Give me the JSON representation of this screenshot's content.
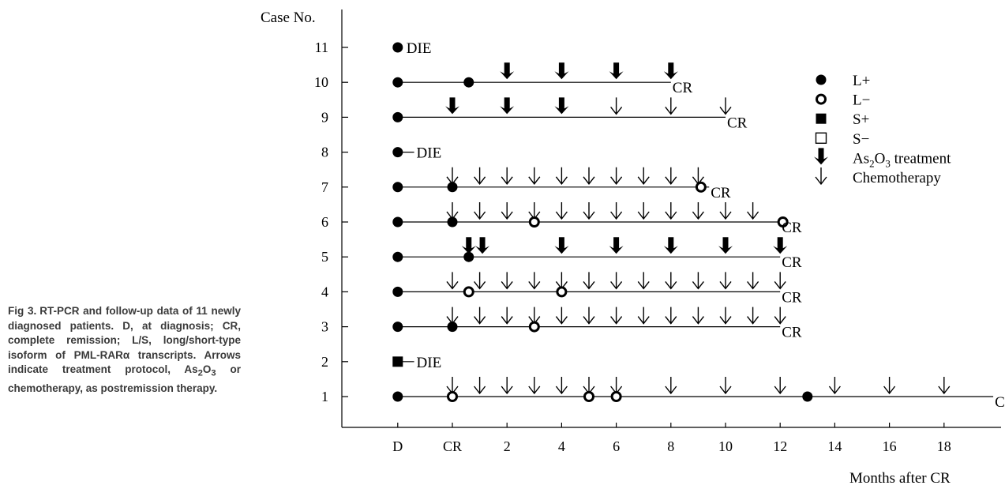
{
  "caption": {
    "figure": "Fig 3.",
    "text_before_sub": "RT-PCR and follow-up data of 11 newly diagnosed patients. D, at diagnosis; CR, complete remission; L/S, long/short-type isoform of PML-RARα transcripts. Arrows indicate treatment protocol, As",
    "sub1": "2",
    "mid": "O",
    "sub2": "3",
    "text_after_sub": " or chemotherapy, as postremission therapy."
  },
  "chart_data": {
    "type": "timeline",
    "ylabel": "Case No.",
    "xlabel": "Months after CR",
    "x_ticks": [
      {
        "label": "D",
        "value": -2
      },
      {
        "label": "CR",
        "value": 0
      },
      {
        "label": "2",
        "value": 2
      },
      {
        "label": "4",
        "value": 4
      },
      {
        "label": "6",
        "value": 6
      },
      {
        "label": "8",
        "value": 8
      },
      {
        "label": "10",
        "value": 10
      },
      {
        "label": "12",
        "value": 12
      },
      {
        "label": "14",
        "value": 14
      },
      {
        "label": "16",
        "value": 16
      },
      {
        "label": "18",
        "value": 18
      }
    ],
    "y_ticks": [
      "1",
      "2",
      "3",
      "4",
      "5",
      "6",
      "7",
      "8",
      "9",
      "10",
      "11"
    ],
    "legend": [
      {
        "type": "L+",
        "label": "L+"
      },
      {
        "type": "L-",
        "label": "L−"
      },
      {
        "type": "S+",
        "label": "S+"
      },
      {
        "type": "S-",
        "label": "S−"
      },
      {
        "type": "as2o3",
        "label_main": "As",
        "label_sub1": "2",
        "label_mid": "O",
        "label_sub2": "3",
        "label_tail": " treatment"
      },
      {
        "type": "chemo",
        "label": "Chemotherapy"
      }
    ],
    "cases": [
      {
        "case": 1,
        "line_end": 19.8,
        "outcome": "CR",
        "markers": [
          {
            "x": -2,
            "type": "L+"
          },
          {
            "x": 0,
            "type": "L-"
          },
          {
            "x": 5,
            "type": "L-"
          },
          {
            "x": 6,
            "type": "L-"
          },
          {
            "x": 13,
            "type": "L+"
          }
        ],
        "arrows": [
          {
            "x": 0,
            "type": "chemo"
          },
          {
            "x": 1,
            "type": "chemo"
          },
          {
            "x": 2,
            "type": "chemo"
          },
          {
            "x": 3,
            "type": "chemo"
          },
          {
            "x": 4,
            "type": "chemo"
          },
          {
            "x": 5,
            "type": "chemo"
          },
          {
            "x": 6,
            "type": "chemo"
          },
          {
            "x": 8,
            "type": "chemo"
          },
          {
            "x": 10,
            "type": "chemo"
          },
          {
            "x": 12,
            "type": "chemo"
          },
          {
            "x": 14,
            "type": "chemo"
          },
          {
            "x": 16,
            "type": "chemo"
          },
          {
            "x": 18,
            "type": "chemo"
          }
        ]
      },
      {
        "case": 2,
        "line_end": -1.4,
        "outcome": "DIE",
        "markers": [
          {
            "x": -2,
            "type": "S+"
          }
        ],
        "arrows": []
      },
      {
        "case": 3,
        "line_end": 12,
        "outcome": "CR",
        "markers": [
          {
            "x": -2,
            "type": "L+"
          },
          {
            "x": 0,
            "type": "L+"
          },
          {
            "x": 3,
            "type": "L-"
          }
        ],
        "arrows": [
          {
            "x": 0,
            "type": "chemo"
          },
          {
            "x": 1,
            "type": "chemo"
          },
          {
            "x": 2,
            "type": "chemo"
          },
          {
            "x": 3,
            "type": "chemo"
          },
          {
            "x": 4,
            "type": "chemo"
          },
          {
            "x": 5,
            "type": "chemo"
          },
          {
            "x": 6,
            "type": "chemo"
          },
          {
            "x": 7,
            "type": "chemo"
          },
          {
            "x": 8,
            "type": "chemo"
          },
          {
            "x": 9,
            "type": "chemo"
          },
          {
            "x": 10,
            "type": "chemo"
          },
          {
            "x": 11,
            "type": "chemo"
          },
          {
            "x": 12,
            "type": "chemo"
          }
        ]
      },
      {
        "case": 4,
        "line_end": 12,
        "outcome": "CR",
        "markers": [
          {
            "x": -2,
            "type": "L+"
          },
          {
            "x": 0.6,
            "type": "L-"
          },
          {
            "x": 4,
            "type": "L-"
          }
        ],
        "arrows": [
          {
            "x": 0,
            "type": "chemo"
          },
          {
            "x": 1,
            "type": "chemo"
          },
          {
            "x": 2,
            "type": "chemo"
          },
          {
            "x": 3,
            "type": "chemo"
          },
          {
            "x": 4,
            "type": "chemo"
          },
          {
            "x": 5,
            "type": "chemo"
          },
          {
            "x": 6,
            "type": "chemo"
          },
          {
            "x": 7,
            "type": "chemo"
          },
          {
            "x": 8,
            "type": "chemo"
          },
          {
            "x": 9,
            "type": "chemo"
          },
          {
            "x": 10,
            "type": "chemo"
          },
          {
            "x": 11,
            "type": "chemo"
          },
          {
            "x": 12,
            "type": "chemo"
          }
        ]
      },
      {
        "case": 5,
        "line_end": 12,
        "outcome": "CR",
        "markers": [
          {
            "x": -2,
            "type": "L+"
          },
          {
            "x": 0.6,
            "type": "L+"
          }
        ],
        "arrows": [
          {
            "x": 0.6,
            "type": "as2o3"
          },
          {
            "x": 1.1,
            "type": "as2o3"
          },
          {
            "x": 4,
            "type": "as2o3"
          },
          {
            "x": 6,
            "type": "as2o3"
          },
          {
            "x": 8,
            "type": "as2o3"
          },
          {
            "x": 10,
            "type": "as2o3"
          },
          {
            "x": 12,
            "type": "as2o3"
          }
        ]
      },
      {
        "case": 6,
        "line_end": 12,
        "outcome": "CR",
        "markers": [
          {
            "x": -2,
            "type": "L+"
          },
          {
            "x": 0,
            "type": "L+"
          },
          {
            "x": 3,
            "type": "L-"
          },
          {
            "x": 12.1,
            "type": "L-"
          }
        ],
        "arrows": [
          {
            "x": 0,
            "type": "chemo"
          },
          {
            "x": 1,
            "type": "chemo"
          },
          {
            "x": 2,
            "type": "chemo"
          },
          {
            "x": 3,
            "type": "chemo"
          },
          {
            "x": 4,
            "type": "chemo"
          },
          {
            "x": 5,
            "type": "chemo"
          },
          {
            "x": 6,
            "type": "chemo"
          },
          {
            "x": 7,
            "type": "chemo"
          },
          {
            "x": 8,
            "type": "chemo"
          },
          {
            "x": 9,
            "type": "chemo"
          },
          {
            "x": 10,
            "type": "chemo"
          },
          {
            "x": 11,
            "type": "chemo"
          }
        ]
      },
      {
        "case": 7,
        "line_end": 9.4,
        "outcome": "CR",
        "markers": [
          {
            "x": -2,
            "type": "L+"
          },
          {
            "x": 0,
            "type": "L+"
          },
          {
            "x": 9.1,
            "type": "L-"
          }
        ],
        "arrows": [
          {
            "x": 0,
            "type": "chemo"
          },
          {
            "x": 1,
            "type": "chemo"
          },
          {
            "x": 2,
            "type": "chemo"
          },
          {
            "x": 3,
            "type": "chemo"
          },
          {
            "x": 4,
            "type": "chemo"
          },
          {
            "x": 5,
            "type": "chemo"
          },
          {
            "x": 6,
            "type": "chemo"
          },
          {
            "x": 7,
            "type": "chemo"
          },
          {
            "x": 8,
            "type": "chemo"
          },
          {
            "x": 9,
            "type": "chemo"
          }
        ]
      },
      {
        "case": 8,
        "line_end": -1.4,
        "outcome": "DIE",
        "markers": [
          {
            "x": -2,
            "type": "L+"
          }
        ],
        "arrows": []
      },
      {
        "case": 9,
        "line_end": 10,
        "outcome": "CR",
        "markers": [
          {
            "x": -2,
            "type": "L+"
          }
        ],
        "arrows": [
          {
            "x": 0,
            "type": "as2o3"
          },
          {
            "x": 2,
            "type": "as2o3"
          },
          {
            "x": 4,
            "type": "as2o3"
          },
          {
            "x": 6,
            "type": "chemo"
          },
          {
            "x": 8,
            "type": "chemo"
          },
          {
            "x": 10,
            "type": "chemo"
          }
        ]
      },
      {
        "case": 10,
        "line_end": 8,
        "outcome": "CR",
        "markers": [
          {
            "x": -2,
            "type": "L+"
          },
          {
            "x": 0.6,
            "type": "L+"
          }
        ],
        "arrows": [
          {
            "x": 2,
            "type": "as2o3"
          },
          {
            "x": 4,
            "type": "as2o3"
          },
          {
            "x": 6,
            "type": "as2o3"
          },
          {
            "x": 8,
            "type": "as2o3"
          }
        ]
      },
      {
        "case": 11,
        "line_end": -2,
        "outcome": "DIE",
        "markers": [
          {
            "x": -2,
            "type": "L+"
          }
        ],
        "arrows": []
      }
    ]
  }
}
